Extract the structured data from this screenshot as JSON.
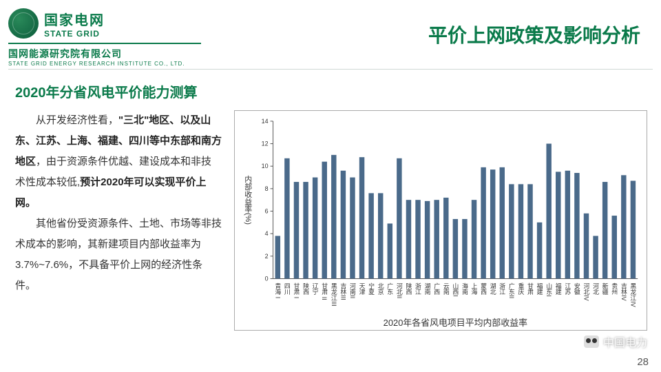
{
  "header": {
    "brand_cn": "国家电网",
    "brand_en": "STATE GRID",
    "sub_cn": "国网能源研究院有限公司",
    "sub_en": "STATE GRID ENERGY RESEARCH INSTITUTE CO., LTD.",
    "title": "平价上网政策及影响分析"
  },
  "subtitle": "2020年分省风电平价能力测算",
  "para1_lead": "从开发经济性看，",
  "para1_bold1": "\"三北\"地区、以及山东、江苏、上海、福建、四川等中东部和南方地区",
  "para1_mid": "，由于资源条件优越、建设成本和非技术性成本较低,",
  "para1_bold2": "预计2020年可以实现平价上网。",
  "para2": "其他省份受资源条件、土地、市场等非技术成本的影响，其新建项目内部收益率为3.7%~7.6%，不具备平价上网的经济性条件。",
  "watermark": "中国电力",
  "page": "28",
  "chart": {
    "type": "bar",
    "title": "2020年各省风电项目平均内部收益率",
    "ylabel": "内部收益率(%)",
    "ylim": [
      0,
      14
    ],
    "ytick_step": 2,
    "bar_color": "#4a6a8a",
    "grid_color": "#d0d0d0",
    "axis_color": "#555555",
    "background_color": "#ffffff",
    "title_fontsize": 13,
    "label_fontsize": 11,
    "tick_fontsize": 9,
    "bar_width": 0.55,
    "categories": [
      "青海 I",
      "四川",
      "甘肃 I",
      "陕西",
      "辽宁",
      "甘肃 II",
      "黑龙江III",
      "吉林III",
      "河南II",
      "天津",
      "宁夏",
      "北京",
      "广东",
      "河北II",
      "陕西",
      "浙江",
      "湖南",
      "广西",
      "云南",
      "山西I",
      "海南",
      "上海",
      "蒙西",
      "湖北",
      "浙江",
      "广东II",
      "重庆",
      "甘肃",
      "福建",
      "山东I",
      "福建",
      "江苏",
      "安徽",
      "河北IV",
      "河北",
      "新疆",
      "贵州",
      "吉林IV",
      "黑龙江IV"
    ],
    "values": [
      3.8,
      10.7,
      8.6,
      8.6,
      9.0,
      10.4,
      11.0,
      9.6,
      9.0,
      10.8,
      7.6,
      7.6,
      4.9,
      10.7,
      7.0,
      7.0,
      6.9,
      7.0,
      7.2,
      5.3,
      5.3,
      7.0,
      9.9,
      9.7,
      9.9,
      8.4,
      8.4,
      8.4,
      5.0,
      12.0,
      9.5,
      9.6,
      9.4,
      5.8,
      3.8,
      8.6,
      5.6,
      9.2,
      8.7
    ]
  }
}
